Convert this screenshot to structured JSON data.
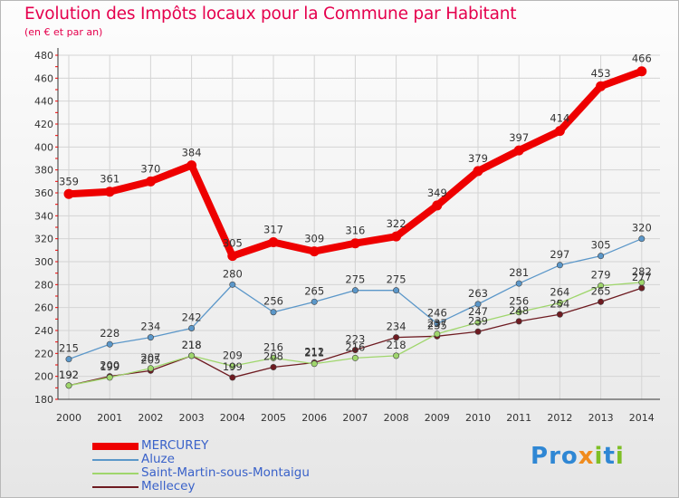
{
  "title": "Evolution des Impôts locaux pour la Commune par Habitant",
  "subtitle": "(en € et par an)",
  "brand": "Proxiti",
  "chart_data": {
    "type": "line",
    "x": [
      "2000",
      "2001",
      "2002",
      "2003",
      "2004",
      "2005",
      "2006",
      "2007",
      "2008",
      "2009",
      "2010",
      "2011",
      "2012",
      "2013",
      "2014"
    ],
    "ylim": [
      180,
      480
    ],
    "yticks": [
      180,
      200,
      220,
      240,
      260,
      280,
      300,
      320,
      340,
      360,
      380,
      400,
      420,
      440,
      460,
      480
    ],
    "grid": true,
    "legend_position": "bottom-left",
    "series": [
      {
        "name": "MERCUREY",
        "color": "#ee0000",
        "width": 8,
        "marker": 5.5,
        "values": [
          359,
          361,
          370,
          384,
          305,
          317,
          309,
          316,
          322,
          349,
          379,
          397,
          414,
          453,
          466
        ]
      },
      {
        "name": "Aluze",
        "color": "#5b97c9",
        "width": 1.3,
        "marker": 3.2,
        "values": [
          215,
          228,
          234,
          242,
          280,
          256,
          265,
          275,
          275,
          246,
          263,
          281,
          297,
          305,
          320
        ]
      },
      {
        "name": "Saint-Martin-sous-Montaigu",
        "color": "#9fd66c",
        "width": 1.3,
        "marker": 3.2,
        "values": [
          192,
          199,
          207,
          218,
          209,
          216,
          211,
          216,
          218,
          237,
          247,
          256,
          264,
          279,
          282
        ]
      },
      {
        "name": "Mellecey",
        "color": "#6e1b21",
        "width": 1.3,
        "marker": 3.2,
        "values": [
          192,
          200,
          205,
          218,
          199,
          208,
          212,
          223,
          234,
          235,
          239,
          248,
          254,
          265,
          277
        ]
      }
    ]
  }
}
